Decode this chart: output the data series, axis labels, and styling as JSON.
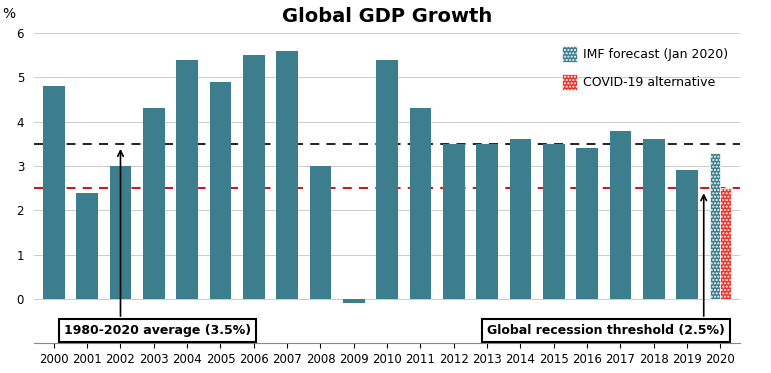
{
  "title": "Global GDP Growth",
  "ylabel": "%",
  "years": [
    2000,
    2001,
    2002,
    2003,
    2004,
    2005,
    2006,
    2007,
    2008,
    2009,
    2010,
    2011,
    2012,
    2013,
    2014,
    2015,
    2016,
    2017,
    2018,
    2019,
    2020
  ],
  "values": [
    4.8,
    2.4,
    3.0,
    4.3,
    5.4,
    4.9,
    5.5,
    5.6,
    3.0,
    -0.1,
    5.4,
    4.3,
    3.5,
    3.5,
    3.6,
    3.5,
    3.4,
    3.8,
    3.6,
    2.9,
    3.3
  ],
  "covid_value": 2.5,
  "bar_color": "#3c7d8e",
  "covid_color": "#e8332a",
  "avg_line": 3.5,
  "recession_line": 2.5,
  "avg_line_color": "#111111",
  "recession_line_color": "#cc0000",
  "avg_label": "1980-2020 average (3.5%)",
  "recession_label": "Global recession threshold (2.5%)",
  "legend_imf": "IMF forecast (Jan 2020)",
  "legend_covid": "COVID-19 alternative",
  "ylim": [
    -1,
    6
  ],
  "yticks": [
    -1,
    0,
    1,
    2,
    3,
    4,
    5,
    6
  ],
  "background_color": "#ffffff",
  "title_fontsize": 14,
  "label_fontsize": 9,
  "tick_fontsize": 8.5,
  "bar_width": 0.65
}
